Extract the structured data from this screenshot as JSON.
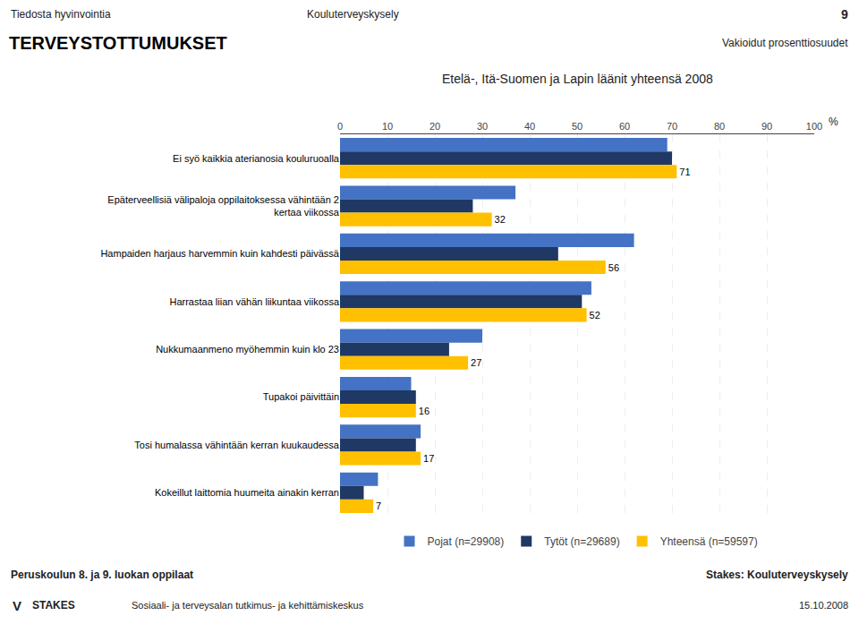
{
  "chart_data": {
    "type": "bar",
    "orientation": "horizontal",
    "title": "TERVEYSTOTTUMUKSET",
    "subtitle": "Etelä-, Itä-Suomen ja Lapin läänit yhteensä 2008",
    "xlabel": "%",
    "categories": [
      "Ei syö kaikkia aterianosia kouluruoalla",
      "Epäterveellisiä välipaloja oppilaitoksessa vähintään 2\nkertaa viikossa",
      "Hampaiden harjaus harvemmin kuin kahdesti päivässä",
      "Harrastaa liian vähän liikuntaa viikossa",
      "Nukkumaanmeno myöhemmin kuin klo 23",
      "Tupakoi päivittäin",
      "Tosi humalassa vähintään kerran kuukaudessa",
      "Kokeillut laittomia huumeita ainakin kerran"
    ],
    "series": [
      {
        "name": "Pojat (n=29908)",
        "color": "#4472C4",
        "values": [
          69,
          37,
          62,
          53,
          30,
          15,
          17,
          8
        ]
      },
      {
        "name": "Tytöt (n=29689)",
        "color": "#1F3864",
        "values": [
          70,
          28,
          46,
          51,
          23,
          16,
          16,
          5
        ]
      },
      {
        "name": "Yhteensä (n=59597)",
        "color": "#FFC000",
        "values": [
          71,
          32,
          56,
          52,
          27,
          16,
          17,
          7
        ],
        "data_labels": true
      }
    ],
    "xlim": [
      0,
      100
    ],
    "xticks": [
      0,
      10,
      20,
      30,
      40,
      50,
      60,
      70,
      80,
      90,
      100
    ],
    "grid": true,
    "legend": "bottom",
    "annotations": [
      "Tiedosta hyvinvointia",
      "Kouluterveyskysely",
      "9",
      "Vakioidut prosenttiosuudet",
      "Peruskoulun 8. ja 9. luokan oppilaat",
      "Stakes: Kouluterveyskysely",
      "Sosiaali- ja terveysalan tutkimus- ja kehittämiskeskus",
      "15.10.2008",
      "V",
      "STAKES"
    ]
  }
}
